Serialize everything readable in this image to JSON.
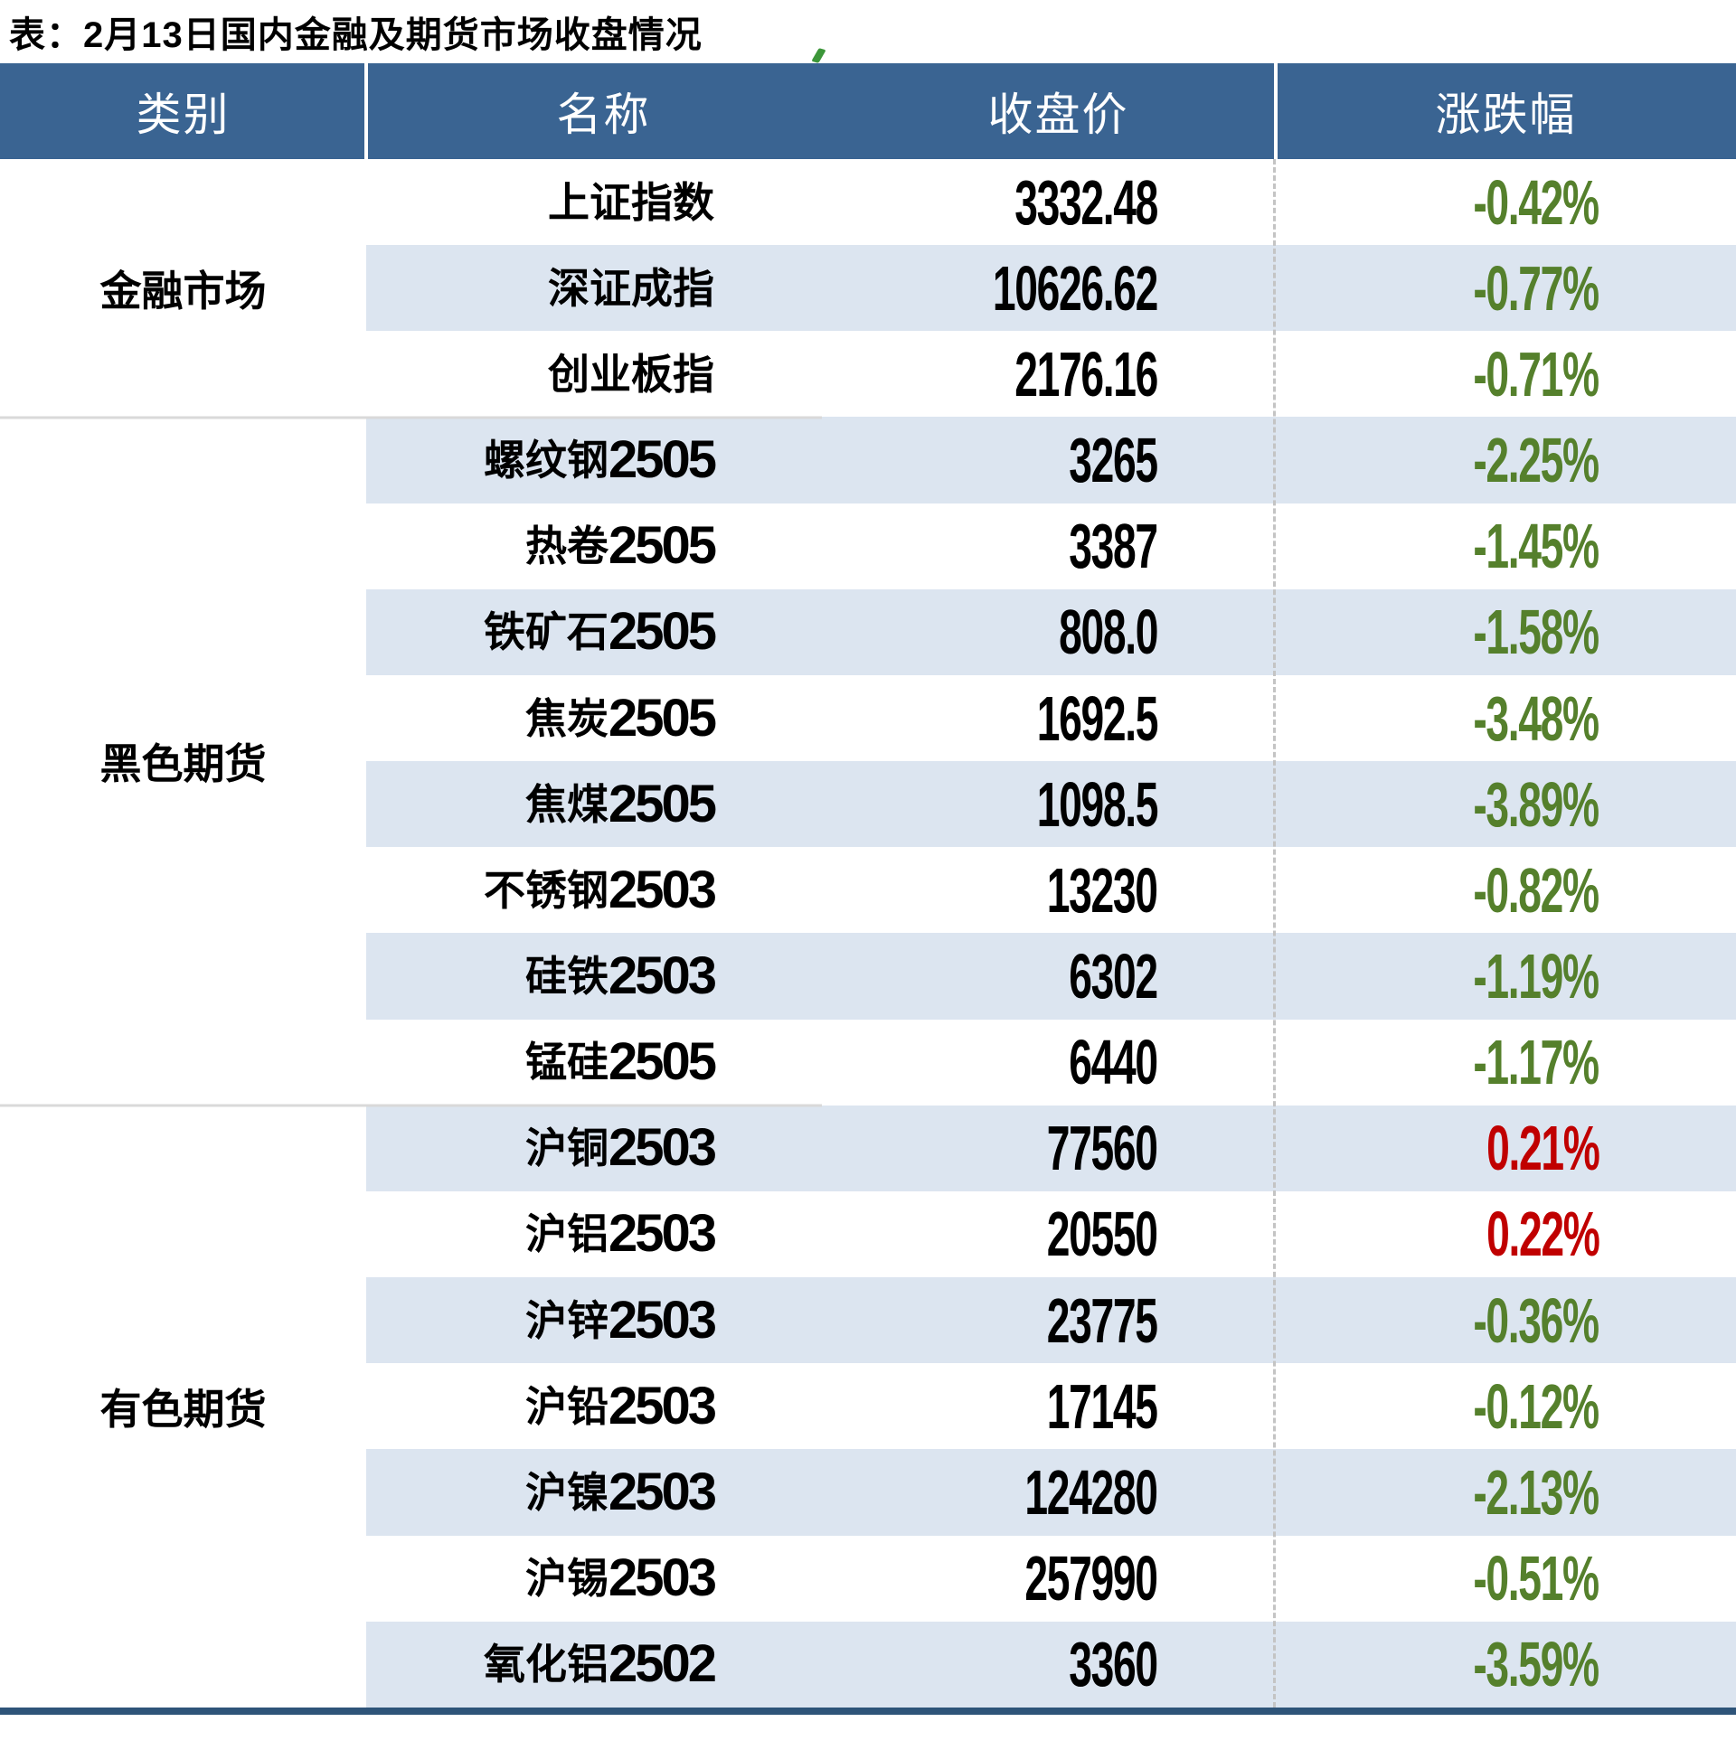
{
  "title": "表：2月13日国内金融及期货市场收盘情况",
  "chart_data": {
    "type": "table",
    "title": "2月13日国内金融及期货市场收盘情况",
    "columns": [
      "类别",
      "名称",
      "收盘价",
      "涨跌幅"
    ],
    "groups": [
      {
        "category": "金融市场",
        "rows": [
          {
            "name": "上证指数",
            "close": "3332.48",
            "change": "-0.42%"
          },
          {
            "name": "深证成指",
            "close": "10626.62",
            "change": "-0.77%"
          },
          {
            "name": "创业板指",
            "close": "2176.16",
            "change": "-0.71%"
          }
        ]
      },
      {
        "category": "黑色期货",
        "rows": [
          {
            "name": "螺纹钢2505",
            "close": "3265",
            "change": "-2.25%"
          },
          {
            "name": "热卷2505",
            "close": "3387",
            "change": "-1.45%"
          },
          {
            "name": "铁矿石2505",
            "close": "808.0",
            "change": "-1.58%"
          },
          {
            "name": "焦炭2505",
            "close": "1692.5",
            "change": "-3.48%"
          },
          {
            "name": "焦煤2505",
            "close": "1098.5",
            "change": "-3.89%"
          },
          {
            "name": "不锈钢2503",
            "close": "13230",
            "change": "-0.82%"
          },
          {
            "name": "硅铁2503",
            "close": "6302",
            "change": "-1.19%"
          },
          {
            "name": "锰硅2505",
            "close": "6440",
            "change": "-1.17%"
          }
        ]
      },
      {
        "category": "有色期货",
        "rows": [
          {
            "name": "沪铜2503",
            "close": "77560",
            "change": "0.21%"
          },
          {
            "name": "沪铝2503",
            "close": "20550",
            "change": "0.22%"
          },
          {
            "name": "沪锌2503",
            "close": "23775",
            "change": "-0.36%"
          },
          {
            "name": "沪铅2503",
            "close": "17145",
            "change": "-0.12%"
          },
          {
            "name": "沪镍2503",
            "close": "124280",
            "change": "-2.13%"
          },
          {
            "name": "沪锡2503",
            "close": "257990",
            "change": "-0.51%"
          },
          {
            "name": "氧化铝2502",
            "close": "3360",
            "change": "-3.59%"
          }
        ]
      }
    ],
    "layout": {
      "stripe_start_column": 2,
      "value_alignment": "right",
      "dashed_divider_before": "涨跌幅"
    }
  },
  "colors": {
    "header_bg": "#3A6492",
    "stripe": "#DCE5F0",
    "positive_red": "#C00000",
    "negative_green": "#55802C",
    "bottom_bar": "#2E5479",
    "group_separator": "#D9D9D9",
    "dashed_divider": "#C4C4C4",
    "tick_mark": "#3C9639"
  }
}
